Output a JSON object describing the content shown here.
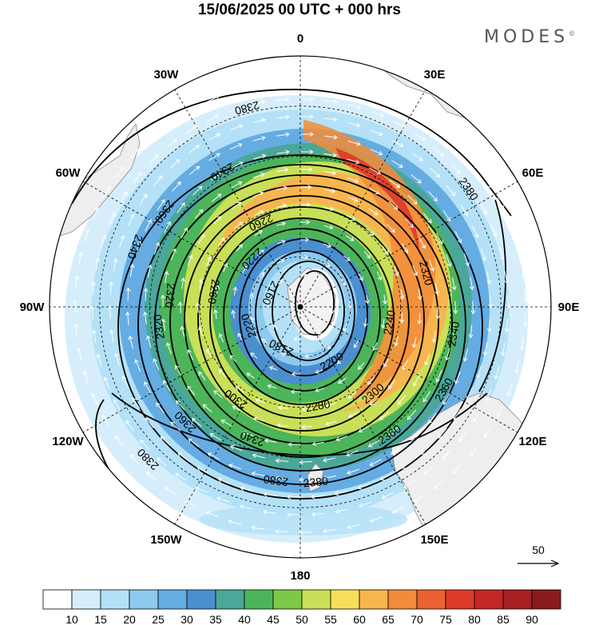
{
  "title": "15/06/2025  00 UTC  + 000 hrs",
  "brand": "MODES",
  "brand_mark": "©",
  "longitude_labels": [
    {
      "lon": "0",
      "angle": 0
    },
    {
      "lon": "30E",
      "angle": 30
    },
    {
      "lon": "60E",
      "angle": 60
    },
    {
      "lon": "90E",
      "angle": 90
    },
    {
      "lon": "120E",
      "angle": 120
    },
    {
      "lon": "150E",
      "angle": 150
    },
    {
      "lon": "180",
      "angle": 180
    },
    {
      "lon": "150W",
      "angle": 210
    },
    {
      "lon": "120W",
      "angle": 240
    },
    {
      "lon": "90W",
      "angle": 270
    },
    {
      "lon": "60W",
      "angle": 300
    },
    {
      "lon": "30W",
      "angle": 330
    }
  ],
  "reference_vector_label": "50",
  "colorbar": {
    "ticks": [
      "10",
      "15",
      "20",
      "25",
      "30",
      "35",
      "40",
      "45",
      "50",
      "55",
      "60",
      "65",
      "70",
      "75",
      "80",
      "85",
      "90"
    ],
    "colors": [
      "#ffffff",
      "#d6eefb",
      "#b4e1f7",
      "#8ec9ee",
      "#64ace2",
      "#4a8fcf",
      "#4aa79a",
      "#4cb55a",
      "#7dc846",
      "#c9df57",
      "#f6e05b",
      "#f7b54e",
      "#f28b3a",
      "#ec6131",
      "#dd3a2a",
      "#c52727",
      "#a81f22",
      "#8a1a1c"
    ]
  },
  "contour_labels": [
    {
      "text": "2380",
      "a": 345,
      "r": 0.82
    },
    {
      "text": "2340",
      "a": 330,
      "r": 0.62
    },
    {
      "text": "2360",
      "a": 305,
      "r": 0.66
    },
    {
      "text": "2340",
      "a": 290,
      "r": 0.7
    },
    {
      "text": "2320",
      "a": 275,
      "r": 0.52
    },
    {
      "text": "2260",
      "a": 280,
      "r": 0.35
    },
    {
      "text": "2260",
      "a": 335,
      "r": 0.37
    },
    {
      "text": "2220",
      "a": 315,
      "r": 0.27
    },
    {
      "text": "2160",
      "a": 295,
      "r": 0.13
    },
    {
      "text": "2180",
      "a": 205,
      "r": 0.18
    },
    {
      "text": "2200",
      "a": 150,
      "r": 0.25
    },
    {
      "text": "2240",
      "a": 100,
      "r": 0.36
    },
    {
      "text": "2320",
      "a": 75,
      "r": 0.52
    },
    {
      "text": "2340",
      "a": 100,
      "r": 0.62
    },
    {
      "text": "2380",
      "a": 55,
      "r": 0.82
    },
    {
      "text": "2360",
      "a": 120,
      "r": 0.66
    },
    {
      "text": "2300",
      "a": 140,
      "r": 0.45
    },
    {
      "text": "2280",
      "a": 170,
      "r": 0.4
    },
    {
      "text": "2360",
      "a": 145,
      "r": 0.62
    },
    {
      "text": "2380",
      "a": 175,
      "r": 0.7
    },
    {
      "text": "2380",
      "a": 188,
      "r": 0.7
    },
    {
      "text": "2340",
      "a": 200,
      "r": 0.56
    },
    {
      "text": "2300",
      "a": 215,
      "r": 0.45
    },
    {
      "text": "2220",
      "a": 250,
      "r": 0.22
    },
    {
      "text": "2360",
      "a": 225,
      "r": 0.65
    },
    {
      "text": "2320",
      "a": 262,
      "r": 0.57
    },
    {
      "text": "2380",
      "a": 225,
      "r": 0.86
    }
  ]
}
